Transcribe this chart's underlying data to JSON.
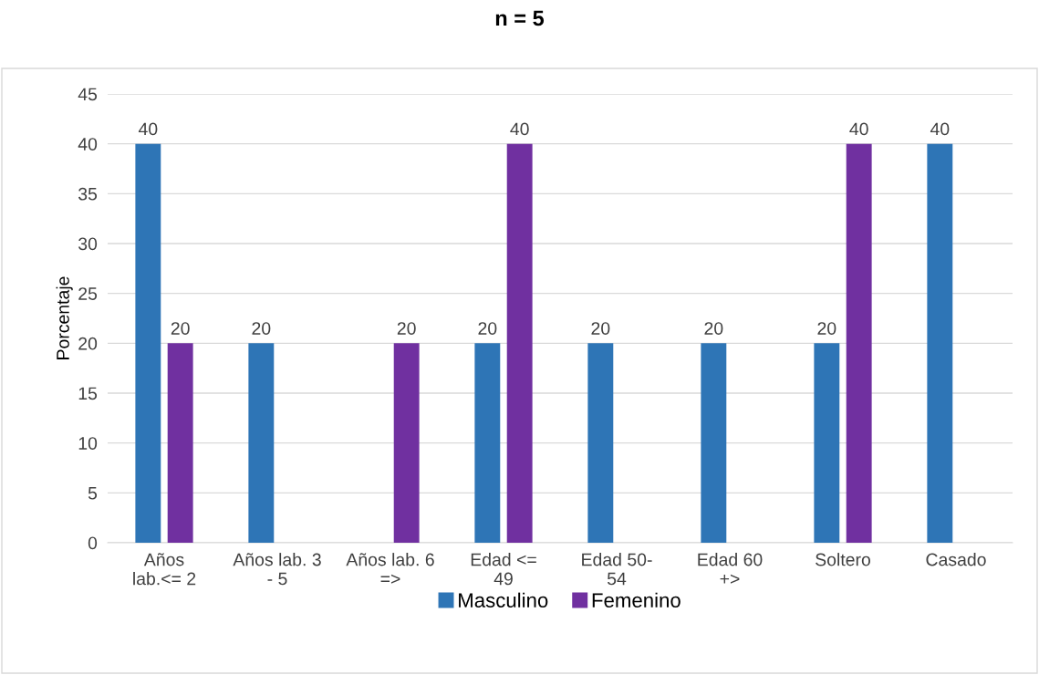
{
  "chart_data": {
    "type": "bar",
    "title": "n = 5",
    "ylabel": "Porcentaje",
    "categories": [
      "Años\nlab.<= 2",
      "Años lab. 3\n- 5",
      "Años lab. 6\n=>",
      "Edad <=\n49",
      "Edad 50-\n54",
      "Edad 60\n+>",
      "Soltero",
      "Casado"
    ],
    "series": [
      {
        "name": "Masculino",
        "color": "#2e75b6",
        "values": [
          40,
          20,
          null,
          20,
          20,
          20,
          20,
          40
        ]
      },
      {
        "name": "Femenino",
        "color": "#7030a0",
        "values": [
          20,
          null,
          20,
          40,
          null,
          null,
          40,
          null
        ]
      }
    ],
    "ylim": [
      0,
      45
    ],
    "yticks": [
      0,
      5,
      10,
      15,
      20,
      25,
      30,
      35,
      40,
      45
    ],
    "grid": "y",
    "legend": "bottom",
    "data_labels": true
  }
}
